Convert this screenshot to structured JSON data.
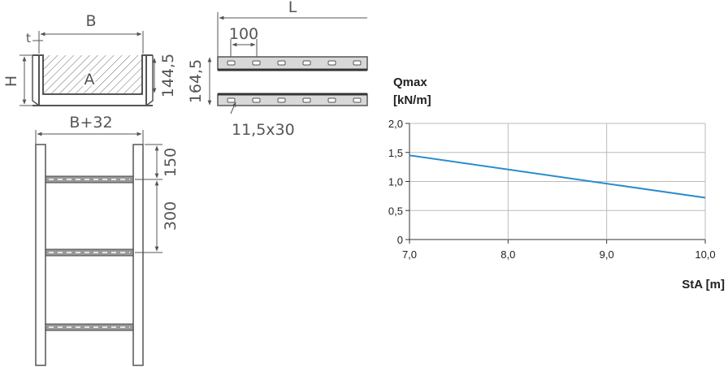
{
  "drawing": {
    "cross_section": {
      "width_label": "B",
      "thickness_label": "t",
      "height_label": "H",
      "area_label": "A",
      "inner_height": "144,5"
    },
    "side_view": {
      "length_label": "L",
      "hole_pitch": "100",
      "overall_height": "164,5",
      "slot_size": "11,5x30"
    },
    "top_view": {
      "outer_width": "B+32",
      "first_rung_offset": "150",
      "rung_spacing": "300"
    }
  },
  "chart_data": {
    "type": "line",
    "ylabel_line1": "Qmax",
    "ylabel_line2": "[kN/m]",
    "xlabel": "StA [m]",
    "x_ticks": [
      "7,0",
      "8,0",
      "9,0",
      "10,0"
    ],
    "y_ticks": [
      "0",
      "0,5",
      "1,0",
      "1,5",
      "2,0"
    ],
    "xlim": [
      7.0,
      10.0
    ],
    "ylim": [
      0,
      2.0
    ],
    "grid": true,
    "series": [
      {
        "x": [
          7.0,
          10.0
        ],
        "y": [
          1.45,
          0.72
        ],
        "color": "#2a8ccc"
      }
    ]
  }
}
